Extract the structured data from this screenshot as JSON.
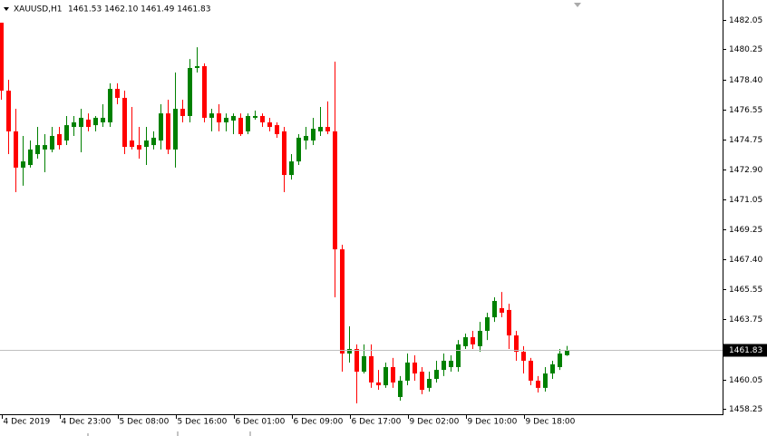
{
  "chart_data": {
    "type": "candlestick",
    "symbol": "XAUUSD,H1",
    "ohlc_label": "1461.53 1462.10 1461.49 1461.83",
    "up_color": "#008000",
    "down_color": "#ff0000",
    "current_price": 1461.83,
    "ylim": [
      1457.86,
      1483.27
    ],
    "yticks": [
      1482.05,
      1480.25,
      {
        "value": 1478.4,
        "label": "1478.40"
      },
      1476.55,
      1474.75,
      {
        "value": 1472.9,
        "label": "1472.90"
      },
      1471.05,
      1469.25,
      {
        "value": 1467.4,
        "label": "1467.40"
      },
      1465.55,
      1463.75,
      1460.05,
      1458.25
    ],
    "categories": [
      "4 Dec 2019",
      null,
      null,
      null,
      null,
      null,
      null,
      null,
      "4 Dec 23:00",
      null,
      null,
      null,
      null,
      null,
      null,
      null,
      "5 Dec 08:00",
      null,
      null,
      null,
      null,
      null,
      null,
      null,
      "5 Dec 16:00",
      null,
      null,
      null,
      null,
      null,
      null,
      null,
      "6 Dec 01:00",
      null,
      null,
      null,
      null,
      null,
      null,
      null,
      "6 Dec 09:00",
      null,
      null,
      null,
      null,
      null,
      null,
      null,
      "6 Dec 17:00",
      null,
      null,
      null,
      null,
      null,
      null,
      null,
      "9 Dec 02:00",
      null,
      null,
      null,
      null,
      null,
      null,
      null,
      "9 Dec 10:00",
      null,
      null,
      null,
      null,
      null,
      null,
      null,
      "9 Dec 18:00",
      null,
      null,
      null,
      null,
      null,
      null
    ],
    "open": [
      1481.88,
      1477.72,
      1475.23,
      1473.01,
      1473.17,
      1473.84,
      1474.12,
      1474.12,
      1475.06,
      1474.67,
      1475.5,
      1475.5,
      1475.95,
      1475.61,
      1475.78,
      1475.78,
      1477.83,
      1477.28,
      1474.67,
      1474.39,
      1474.28,
      1474.39,
      1474.67,
      1476.33,
      1474.12,
      1476.61,
      1476.17,
      1479.11,
      1479.22,
      1476.06,
      1476.33,
      1475.78,
      1475.89,
      1476.06,
      1475.23,
      1476.06,
      1476.17,
      1475.78,
      1475.61,
      1475.23,
      1472.56,
      1473.39,
      1474.67,
      1474.67,
      1475.23,
      1475.5,
      1475.23,
      1468.01,
      1461.63,
      1461.91,
      1460.52,
      1461.47,
      1459.86,
      1459.69,
      1460.8,
      1458.97,
      1459.97,
      1461.08,
      1460.52,
      1459.53,
      1460.08,
      1460.63,
      1460.8,
      1460.8,
      1462.08,
      1462.63,
      1462.08,
      1463.02,
      1463.85,
      1464.41,
      1464.3,
      1462.74,
      1461.74,
      1461.19,
      1459.97,
      1459.53,
      1460.41,
      1460.8,
      1461.53
    ],
    "high": [
      1481.88,
      1478.39,
      1476.61,
      1474.95,
      1474.67,
      1475.5,
      1475.06,
      1475.5,
      1475.5,
      1476.17,
      1476.17,
      1476.61,
      1476.33,
      1476.17,
      1476.89,
      1478.17,
      1478.17,
      1477.72,
      1476.72,
      1475.5,
      1475.5,
      1475.23,
      1476.89,
      1477.17,
      1478.83,
      1477.17,
      1479.66,
      1480.38,
      1479.39,
      1476.61,
      1476.89,
      1476.33,
      1476.33,
      1476.33,
      1476.33,
      1476.5,
      1476.33,
      1476.06,
      1475.78,
      1475.5,
      1473.84,
      1475.06,
      1475.5,
      1476.06,
      1476.72,
      1477.06,
      1479.5,
      1468.29,
      1463.3,
      1462.19,
      1462.19,
      1462.19,
      1460.63,
      1461.08,
      1461.36,
      1460.25,
      1461.63,
      1461.52,
      1460.8,
      1460.52,
      1461.19,
      1461.63,
      1461.52,
      1462.46,
      1462.85,
      1463.02,
      1463.57,
      1464.13,
      1465.07,
      1465.4,
      1464.68,
      1463.02,
      1462.08,
      1461.36,
      1460.25,
      1460.8,
      1461.19,
      1461.91,
      1462.1
    ],
    "low": [
      1477.17,
      1473.84,
      1471.51,
      1471.9,
      1473.01,
      1473.56,
      1472.73,
      1473.95,
      1474.12,
      1474.39,
      1474.95,
      1473.95,
      1475.23,
      1475.23,
      1475.5,
      1475.5,
      1476.89,
      1473.84,
      1474.12,
      1473.56,
      1473.17,
      1474.12,
      1474.12,
      1473.84,
      1473.01,
      1475.78,
      1475.78,
      1478.83,
      1475.78,
      1475.23,
      1475.23,
      1475.23,
      1475.06,
      1474.95,
      1475.06,
      1475.95,
      1475.5,
      1475.23,
      1474.84,
      1471.51,
      1472.28,
      1473.17,
      1474.12,
      1474.39,
      1474.95,
      1475.06,
      1465.07,
      1460.52,
      1461.08,
      1458.58,
      1460.41,
      1459.53,
      1459.41,
      1459.53,
      1459.53,
      1458.75,
      1459.69,
      1459.97,
      1459.14,
      1459.3,
      1459.86,
      1460.25,
      1460.52,
      1460.52,
      1461.91,
      1461.91,
      1461.74,
      1462.46,
      1463.57,
      1463.85,
      1461.91,
      1461.19,
      1460.41,
      1459.69,
      1459.25,
      1459.3,
      1460.08,
      1460.63,
      1461.49
    ],
    "close": [
      1477.72,
      1475.23,
      1473.01,
      1473.39,
      1474.12,
      1474.39,
      1474.39,
      1474.95,
      1474.39,
      1475.61,
      1475.78,
      1476.06,
      1475.5,
      1476.06,
      1476.06,
      1477.83,
      1477.28,
      1474.28,
      1474.28,
      1474.12,
      1474.67,
      1474.84,
      1476.33,
      1474.12,
      1476.61,
      1476.17,
      1479.11,
      1479.22,
      1476.06,
      1476.33,
      1475.78,
      1476.06,
      1476.17,
      1475.06,
      1476.17,
      1476.17,
      1475.78,
      1475.5,
      1475.06,
      1472.56,
      1473.39,
      1474.84,
      1474.95,
      1475.39,
      1475.5,
      1475.23,
      1468.01,
      1461.63,
      1461.91,
      1460.52,
      1461.47,
      1459.86,
      1459.69,
      1460.8,
      1459.86,
      1459.97,
      1461.08,
      1460.41,
      1459.41,
      1460.08,
      1460.63,
      1461.19,
      1461.19,
      1462.19,
      1462.63,
      1462.19,
      1463.02,
      1463.85,
      1464.85,
      1464.13,
      1462.74,
      1461.74,
      1461.19,
      1459.97,
      1459.53,
      1460.41,
      1460.97,
      1461.63,
      1461.83
    ]
  }
}
